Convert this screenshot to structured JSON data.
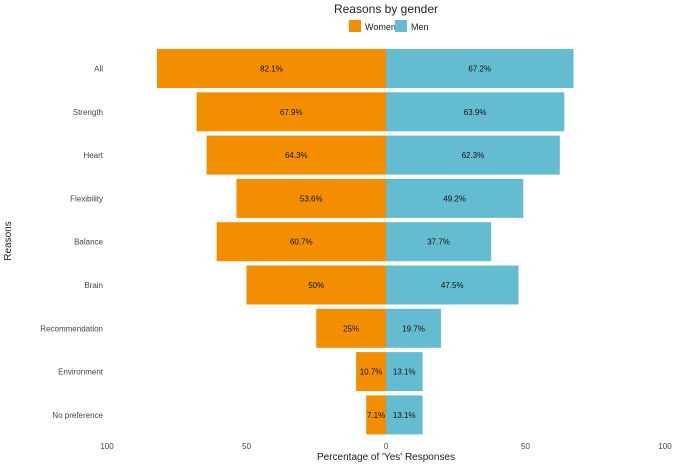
{
  "chart_data": {
    "type": "bar",
    "orientation": "horizontal-diverging",
    "title": "Reasons by gender",
    "xlabel": "Percentage of 'Yes' Responses",
    "ylabel": "Reasons",
    "xlim": [
      -100,
      100
    ],
    "x_ticks": [
      -100,
      -50,
      0,
      50,
      100
    ],
    "x_tick_labels": [
      "100",
      "50",
      "0",
      "50",
      "100"
    ],
    "categories": [
      "All",
      "Strength",
      "Heart",
      "Flexibility",
      "Balance",
      "Brain",
      "Recommendation",
      "Environment",
      "No preference"
    ],
    "series": [
      {
        "name": "Women",
        "color": "#F28E00",
        "direction": "left",
        "values": [
          82.1,
          67.9,
          64.3,
          53.6,
          60.7,
          50,
          25,
          10.7,
          7.1
        ],
        "labels": [
          "82.1%",
          "67.9%",
          "64.3%",
          "53.6%",
          "60.7%",
          "50%",
          "25%",
          "10.7%",
          "7.1%"
        ]
      },
      {
        "name": "Men",
        "color": "#64BCD1",
        "direction": "right",
        "values": [
          67.2,
          63.9,
          62.3,
          49.2,
          37.7,
          47.5,
          19.7,
          13.1,
          13.1
        ],
        "labels": [
          "67.2%",
          "63.9%",
          "62.3%",
          "49.2%",
          "37.7%",
          "47.5%",
          "19.7%",
          "13.1%",
          "13.1%"
        ]
      }
    ],
    "legend": {
      "position": "top"
    },
    "grid": false
  }
}
